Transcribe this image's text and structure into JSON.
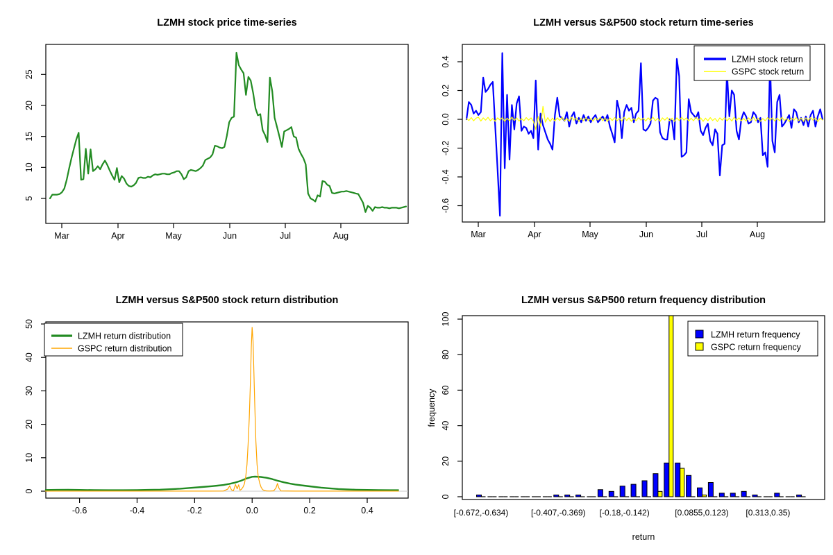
{
  "figure": {
    "background": "#FFFFFF",
    "text_color": "#000000"
  },
  "chart_data": [
    {
      "type": "line",
      "title": "LZMH stock price time-series",
      "x_tick_labels": [
        "Mar",
        "Apr",
        "May",
        "Jun",
        "Jul",
        "Aug"
      ],
      "y_tick_labels": [
        "5",
        "10",
        "15",
        "20",
        "25"
      ],
      "y_tick_values": [
        5,
        10,
        15,
        20,
        25
      ],
      "ylim": [
        1,
        30
      ],
      "grid": false,
      "series": [
        {
          "name": "LZMH stock price",
          "color": "#228B22",
          "line_width": 2.2,
          "values": [
            5.0,
            5.6,
            5.6,
            5.6,
            5.7,
            6.0,
            6.6,
            8.0,
            9.8,
            11.5,
            13.0,
            14.5,
            15.6,
            8.0,
            8.1,
            13.0,
            9.0,
            12.9,
            9.4,
            9.7,
            10.2,
            9.7,
            10.5,
            11.1,
            10.4,
            9.5,
            8.7,
            8.0,
            9.9,
            7.6,
            8.6,
            8.2,
            7.4,
            7.0,
            6.9,
            7.1,
            7.5,
            8.3,
            8.4,
            8.3,
            8.3,
            8.5,
            8.4,
            8.7,
            8.9,
            8.8,
            8.9,
            9.0,
            9.0,
            8.9,
            8.9,
            9.1,
            9.2,
            9.4,
            9.4,
            8.9,
            8.1,
            8.4,
            9.4,
            9.6,
            9.5,
            9.4,
            9.6,
            9.9,
            10.3,
            11.2,
            11.4,
            11.6,
            12.1,
            13.5,
            13.4,
            13.2,
            13.1,
            13.3,
            15.1,
            17.3,
            18.0,
            18.2,
            28.5,
            26.5,
            25.8,
            25.2,
            21.7,
            24.6,
            24.0,
            22.0,
            19.5,
            18.4,
            18.6,
            16.0,
            15.2,
            14.1,
            24.5,
            22.3,
            18.0,
            16.5,
            15.0,
            13.3,
            15.8,
            16.0,
            16.2,
            16.5,
            15.0,
            14.8,
            13.0,
            12.2,
            11.5,
            10.5,
            5.8,
            5.0,
            4.8,
            4.5,
            5.5,
            5.3,
            7.8,
            7.7,
            7.2,
            7.0,
            5.9,
            5.8,
            5.9,
            6.0,
            6.1,
            6.1,
            6.2,
            6.1,
            6.0,
            5.9,
            5.8,
            5.7,
            5.0,
            4.3,
            2.8,
            3.8,
            3.5,
            3.0,
            3.6,
            3.5,
            3.5,
            3.6,
            3.5,
            3.5,
            3.4,
            3.5,
            3.5,
            3.5,
            3.4,
            3.5,
            3.6,
            3.7
          ]
        }
      ]
    },
    {
      "type": "line",
      "title": "LZMH versus S&P500 stock return time-series",
      "x_tick_labels": [
        "Mar",
        "Apr",
        "May",
        "Jun",
        "Jul",
        "Aug"
      ],
      "y_tick_labels": [
        "0.4",
        "0.2",
        "0.0",
        "-0.2",
        "-0.4",
        "-0.6"
      ],
      "y_tick_values": [
        0.4,
        0.2,
        0.0,
        -0.2,
        -0.4,
        -0.6
      ],
      "ylim": [
        -0.71,
        0.52
      ],
      "grid": false,
      "legend_position": "topright",
      "legend": [
        {
          "label": "LZMH stock return",
          "color": "#0000FF",
          "line_width": 3.5
        },
        {
          "label": "GSPC stock return",
          "color": "#FFFF00",
          "line_width": 1.5
        }
      ],
      "series": [
        {
          "name": "LZMH stock return",
          "color": "#0000FF",
          "line_width": 2.2,
          "values": [
            0.0,
            0.12,
            0.1,
            0.04,
            0.06,
            0.03,
            0.05,
            0.29,
            0.19,
            0.21,
            0.24,
            0.26,
            -0.04,
            -0.35,
            -0.67,
            0.46,
            -0.34,
            0.17,
            -0.28,
            0.1,
            -0.07,
            0.11,
            0.16,
            -0.08,
            -0.05,
            -0.06,
            -0.1,
            -0.08,
            -0.13,
            0.27,
            -0.21,
            0.04,
            -0.04,
            -0.09,
            -0.14,
            -0.17,
            -0.21,
            0.03,
            0.15,
            0.02,
            0.01,
            -0.01,
            0.05,
            -0.05,
            0.02,
            0.05,
            -0.03,
            0.01,
            -0.02,
            0.03,
            -0.01,
            0.02,
            -0.02,
            0.01,
            0.03,
            -0.02,
            0.0,
            0.02,
            -0.01,
            0.03,
            -0.05,
            -0.1,
            -0.16,
            0.13,
            0.06,
            -0.13,
            0.05,
            0.1,
            0.06,
            0.08,
            -0.02,
            0.04,
            0.06,
            0.39,
            -0.07,
            -0.08,
            -0.06,
            -0.03,
            0.13,
            0.15,
            0.14,
            -0.09,
            -0.13,
            -0.14,
            -0.14,
            0.0,
            -0.01,
            -0.14,
            0.42,
            0.3,
            -0.26,
            -0.25,
            -0.23,
            0.14,
            0.05,
            0.03,
            0.01,
            0.05,
            -0.08,
            -0.11,
            -0.06,
            -0.03,
            -0.15,
            -0.18,
            -0.07,
            -0.1,
            -0.39,
            -0.18,
            -0.17,
            0.33,
            0.02,
            0.2,
            0.17,
            -0.08,
            -0.14,
            0.0,
            0.05,
            0.02,
            -0.03,
            -0.02,
            0.05,
            0.03,
            -0.02,
            0.01,
            -0.25,
            -0.23,
            -0.33,
            0.4,
            -0.15,
            -0.23,
            0.12,
            0.17,
            -0.05,
            -0.03,
            0.0,
            0.03,
            -0.06,
            0.07,
            0.05,
            -0.02,
            0.01,
            -0.04,
            0.02,
            -0.05,
            0.03,
            0.06,
            -0.05,
            0.02,
            0.07,
            0.0
          ]
        },
        {
          "name": "GSPC stock return",
          "color": "#FFFF00",
          "line_width": 1.2,
          "values": [
            0.005,
            -0.008,
            0.012,
            -0.01,
            0.008,
            0.015,
            -0.012,
            0.01,
            -0.006,
            0.014,
            -0.01,
            0.006,
            -0.014,
            0.01,
            -0.005,
            0.012,
            -0.015,
            0.008,
            -0.01,
            0.015,
            -0.008,
            0.01,
            -0.012,
            0.006,
            -0.01,
            0.012,
            -0.006,
            0.01,
            -0.015,
            -0.07,
            0.02,
            -0.05,
            0.09,
            -0.02,
            0.012,
            -0.015,
            0.008,
            -0.012,
            0.01,
            -0.008,
            0.014,
            -0.01,
            0.006,
            -0.012,
            0.015,
            -0.006,
            0.01,
            -0.014,
            0.008,
            -0.01,
            0.012,
            -0.008,
            0.006,
            -0.012,
            0.01,
            -0.006,
            0.014,
            -0.01,
            0.008,
            -0.015,
            0.01,
            -0.008,
            0.012,
            -0.01,
            0.006,
            -0.012,
            0.015,
            -0.008,
            0.01,
            -0.014,
            0.006,
            -0.01,
            0.012,
            -0.006,
            0.008,
            -0.012,
            0.01,
            -0.008,
            0.015,
            -0.01,
            0.006,
            -0.014,
            0.01,
            -0.006,
            0.012,
            -0.01,
            0.008,
            -0.015,
            0.01,
            -0.008,
            0.014,
            -0.006,
            0.01,
            -0.012,
            0.008,
            -0.01,
            0.015,
            -0.006,
            0.01,
            -0.014,
            0.008,
            -0.01,
            0.012,
            -0.008,
            0.006,
            -0.015,
            0.01,
            -0.006,
            0.012,
            -0.01,
            0.008,
            -0.012,
            0.014,
            -0.008,
            0.01,
            -0.01,
            0.006,
            -0.012,
            0.01,
            -0.008,
            0.015,
            -0.01,
            0.008,
            -0.014,
            0.006,
            -0.01,
            0.012,
            -0.006,
            0.01,
            -0.012,
            0.008,
            -0.01,
            0.014,
            -0.008,
            0.006,
            -0.015,
            0.01,
            -0.006,
            0.012,
            -0.01,
            0.008,
            -0.014,
            0.01,
            -0.008,
            0.012,
            -0.006,
            0.01,
            -0.015,
            0.008,
            -0.005
          ]
        }
      ]
    },
    {
      "type": "density",
      "title": "LZMH versus S&P500 stock return distribution",
      "x_tick_labels": [
        "-0.6",
        "-0.4",
        "-0.2",
        "0.0",
        "0.2",
        "0.4"
      ],
      "x_tick_values": [
        -0.6,
        -0.4,
        -0.2,
        0.0,
        0.2,
        0.4
      ],
      "y_tick_labels": [
        "0",
        "10",
        "20",
        "30",
        "40",
        "50"
      ],
      "y_tick_values": [
        0,
        10,
        20,
        30,
        40,
        50
      ],
      "xlim": [
        -0.72,
        0.51
      ],
      "ylim": [
        0,
        51
      ],
      "zero_line_color": "#C8C8C8",
      "legend_position": "topleft",
      "legend": [
        {
          "label": "LZMH return distribution",
          "color": "#228B22",
          "line_width": 3.2
        },
        {
          "label": "GSPC return distribution",
          "color": "#FFA500",
          "line_width": 1.5
        }
      ],
      "series": [
        {
          "name": "LZMH return distribution",
          "color": "#228B22",
          "line_width": 2.4,
          "points": [
            [
              -0.72,
              0.35
            ],
            [
              -0.68,
              0.4
            ],
            [
              -0.64,
              0.42
            ],
            [
              -0.6,
              0.38
            ],
            [
              -0.55,
              0.32
            ],
            [
              -0.5,
              0.3
            ],
            [
              -0.45,
              0.3
            ],
            [
              -0.4,
              0.34
            ],
            [
              -0.36,
              0.4
            ],
            [
              -0.32,
              0.46
            ],
            [
              -0.28,
              0.6
            ],
            [
              -0.25,
              0.75
            ],
            [
              -0.22,
              0.95
            ],
            [
              -0.19,
              1.15
            ],
            [
              -0.16,
              1.35
            ],
            [
              -0.14,
              1.5
            ],
            [
              -0.12,
              1.65
            ],
            [
              -0.1,
              1.85
            ],
            [
              -0.08,
              2.15
            ],
            [
              -0.06,
              2.55
            ],
            [
              -0.04,
              3.1
            ],
            [
              -0.02,
              3.8
            ],
            [
              0.0,
              4.3
            ],
            [
              0.01,
              4.35
            ],
            [
              0.03,
              4.25
            ],
            [
              0.05,
              4.0
            ],
            [
              0.07,
              3.6
            ],
            [
              0.09,
              3.1
            ],
            [
              0.11,
              2.65
            ],
            [
              0.13,
              2.3
            ],
            [
              0.15,
              2.0
            ],
            [
              0.18,
              1.65
            ],
            [
              0.21,
              1.35
            ],
            [
              0.24,
              1.05
            ],
            [
              0.27,
              0.85
            ],
            [
              0.3,
              0.65
            ],
            [
              0.33,
              0.52
            ],
            [
              0.36,
              0.44
            ],
            [
              0.4,
              0.38
            ],
            [
              0.44,
              0.34
            ],
            [
              0.48,
              0.3
            ],
            [
              0.51,
              0.3
            ]
          ]
        },
        {
          "name": "GSPC return distribution",
          "color": "#FFA500",
          "line_width": 1.2,
          "points": [
            [
              -0.72,
              0.02
            ],
            [
              -0.3,
              0.02
            ],
            [
              -0.15,
              0.03
            ],
            [
              -0.1,
              0.05
            ],
            [
              -0.085,
              0.6
            ],
            [
              -0.078,
              1.6
            ],
            [
              -0.072,
              0.4
            ],
            [
              -0.065,
              0.15
            ],
            [
              -0.058,
              2.0
            ],
            [
              -0.052,
              0.7
            ],
            [
              -0.047,
              1.9
            ],
            [
              -0.042,
              0.3
            ],
            [
              -0.037,
              0.6
            ],
            [
              -0.032,
              1.2
            ],
            [
              -0.027,
              2.2
            ],
            [
              -0.022,
              4.5
            ],
            [
              -0.018,
              8.0
            ],
            [
              -0.014,
              14.0
            ],
            [
              -0.01,
              22.0
            ],
            [
              -0.006,
              33.0
            ],
            [
              -0.003,
              43.0
            ],
            [
              0.0,
              49.0
            ],
            [
              0.003,
              45.0
            ],
            [
              0.006,
              36.0
            ],
            [
              0.009,
              26.0
            ],
            [
              0.013,
              15.0
            ],
            [
              0.017,
              8.0
            ],
            [
              0.021,
              4.5
            ],
            [
              0.026,
              2.5
            ],
            [
              0.031,
              1.2
            ],
            [
              0.036,
              0.5
            ],
            [
              0.042,
              0.2
            ],
            [
              0.05,
              0.08
            ],
            [
              0.06,
              0.04
            ],
            [
              0.075,
              0.1
            ],
            [
              0.083,
              1.0
            ],
            [
              0.088,
              2.3
            ],
            [
              0.093,
              0.9
            ],
            [
              0.1,
              0.08
            ],
            [
              0.15,
              0.02
            ],
            [
              0.3,
              0.02
            ],
            [
              0.51,
              0.02
            ]
          ]
        }
      ]
    },
    {
      "type": "bar",
      "title": "LZMH versus S&P500 return frequency distribution",
      "xlabel": "return",
      "ylabel": "frequency",
      "y_tick_labels": [
        "0",
        "20",
        "40",
        "60",
        "80",
        "100"
      ],
      "y_tick_values": [
        0,
        20,
        40,
        60,
        80,
        100
      ],
      "ylim": [
        0,
        100
      ],
      "bin_count": 30,
      "bin_tick_labels": [
        "[-0.672,-0.634)",
        "[-0.407,-0.369)",
        "[-0.18,-0.142)",
        "[0.0855,0.123)",
        "[0.313,0.35)"
      ],
      "bin_tick_positions": [
        0,
        7,
        13,
        20,
        26
      ],
      "legend_position": "topright",
      "legend": [
        {
          "label": "LZMH return frequency",
          "color": "#0000FF"
        },
        {
          "label": "GSPC return frequency",
          "color": "#FFFF00"
        }
      ],
      "series": [
        {
          "name": "LZMH return frequency",
          "color": "#0000FF",
          "values": [
            1,
            0,
            0,
            0,
            0,
            0,
            0,
            1,
            1,
            1,
            0,
            4,
            3,
            6,
            7,
            9,
            13,
            19,
            19,
            12,
            5,
            8,
            2,
            2,
            3,
            1,
            0,
            2,
            0,
            1
          ]
        },
        {
          "name": "GSPC return frequency",
          "color": "#FFFF00",
          "values": [
            0,
            0,
            0,
            0,
            0,
            0,
            0,
            0,
            0,
            0,
            0,
            0,
            0,
            0,
            0,
            0,
            3,
            102,
            16,
            0,
            1,
            0,
            0,
            0,
            0,
            0,
            0,
            0,
            0,
            0
          ]
        }
      ]
    }
  ]
}
